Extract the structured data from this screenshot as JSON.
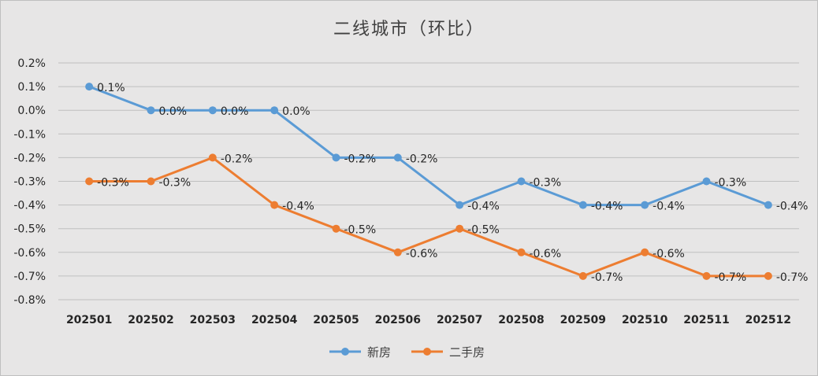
{
  "chart_data": {
    "type": "line",
    "title": "二线城市（环比）",
    "categories": [
      "202501",
      "202502",
      "202503",
      "202504",
      "202505",
      "202506",
      "202507",
      "202508",
      "202509",
      "202510",
      "202511",
      "202512"
    ],
    "ylim": [
      -0.8,
      0.2
    ],
    "yticks": [
      0.2,
      0.1,
      0.0,
      -0.1,
      -0.2,
      -0.3,
      -0.4,
      -0.5,
      -0.6,
      -0.7,
      -0.8
    ],
    "ytick_labels": [
      "0.2%",
      "0.1%",
      "0.0%",
      "-0.1%",
      "-0.2%",
      "-0.3%",
      "-0.4%",
      "-0.5%",
      "-0.6%",
      "-0.7%",
      "-0.8%"
    ],
    "grid": true,
    "legend_position": "bottom",
    "series": [
      {
        "name": "新房",
        "color": "#5b9bd5",
        "values": [
          0.1,
          0.0,
          0.0,
          0.0,
          -0.2,
          -0.2,
          -0.4,
          -0.3,
          -0.4,
          -0.4,
          -0.3,
          -0.4
        ],
        "labels": [
          "0.1%",
          "0.0%",
          "0.0%",
          "0.0%",
          "-0.2%",
          "-0.2%",
          "-0.4%",
          "-0.3%",
          "-0.4%",
          "-0.4%",
          "-0.3%",
          "-0.4%"
        ]
      },
      {
        "name": "二手房",
        "color": "#ed7d31",
        "values": [
          -0.3,
          -0.3,
          -0.2,
          -0.4,
          -0.5,
          -0.6,
          -0.5,
          -0.6,
          -0.7,
          -0.6,
          -0.7,
          -0.7
        ],
        "labels": [
          "-0.3%",
          "-0.3%",
          "-0.2%",
          "-0.4%",
          "-0.5%",
          "-0.6%",
          "-0.5%",
          "-0.6%",
          "-0.7%",
          "-0.6%",
          "-0.7%",
          "-0.7%"
        ]
      }
    ]
  }
}
